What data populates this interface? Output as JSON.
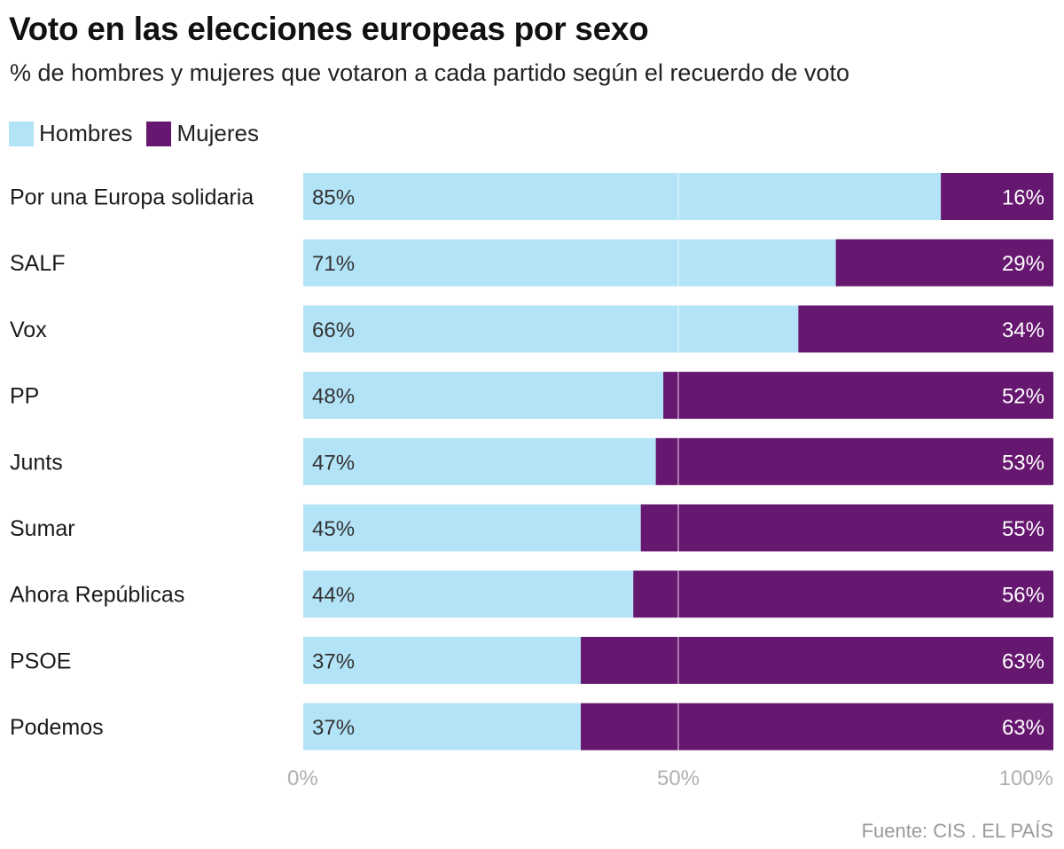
{
  "title": "Voto en las elecciones europeas por sexo",
  "subtitle": "% de hombres y mujeres que votaron a cada partido según el recuerdo de voto",
  "source": "Fuente: CIS . EL PAÍS",
  "colors": {
    "hombres": "#b3e3f7",
    "mujeres": "#66176f",
    "grid": "#ffffff",
    "tick": "#b0b0b0"
  },
  "chart_data": {
    "type": "bar",
    "orientation": "horizontal",
    "stacked": true,
    "categories": [
      "Por una Europa solidaria",
      "SALF",
      "Vox",
      "PP",
      "Junts",
      "Sumar",
      "Ahora Repúblicas",
      "PSOE",
      "Podemos"
    ],
    "series": [
      {
        "name": "Hombres",
        "values": [
          85,
          71,
          66,
          48,
          47,
          45,
          44,
          37,
          37
        ],
        "labels": [
          "85%",
          "71%",
          "66%",
          "48%",
          "47%",
          "45%",
          "44%",
          "37%",
          "37%"
        ]
      },
      {
        "name": "Mujeres",
        "values": [
          16,
          29,
          34,
          52,
          53,
          55,
          56,
          63,
          63
        ],
        "labels": [
          "16%",
          "29%",
          "34%",
          "52%",
          "53%",
          "55%",
          "56%",
          "63%",
          "63%"
        ]
      }
    ],
    "xlim": [
      0,
      100
    ],
    "xticks": [
      0,
      50,
      100
    ],
    "xtick_labels": [
      "0%",
      "50%",
      "100%"
    ],
    "legend": "top-left"
  }
}
